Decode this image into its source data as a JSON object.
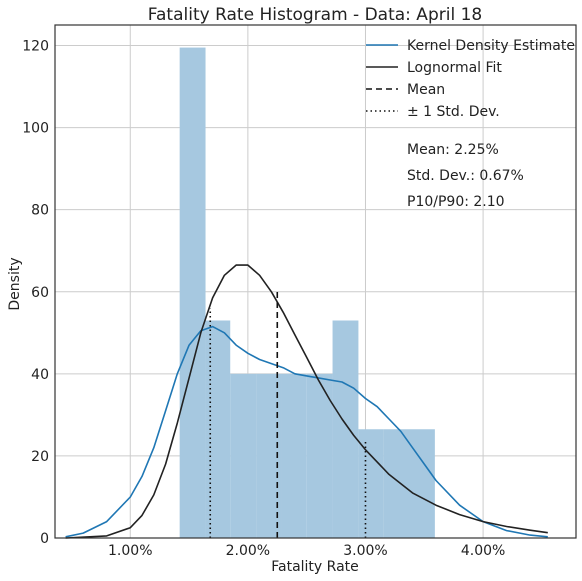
{
  "chart_data": {
    "type": "histogram",
    "title": "Fatality Rate Histogram - Data: April 18",
    "xlabel": "Fatality Rate",
    "ylabel": "Density",
    "xlim": [
      0.0036,
      0.0479
    ],
    "ylim": [
      0,
      125
    ],
    "x_ticks": [
      {
        "value": 0.01,
        "label": "1.00%"
      },
      {
        "value": 0.02,
        "label": "2.00%"
      },
      {
        "value": 0.03,
        "label": "3.00%"
      },
      {
        "value": 0.04,
        "label": "4.00%"
      }
    ],
    "y_ticks": [
      {
        "value": 0,
        "label": "0"
      },
      {
        "value": 20,
        "label": "20"
      },
      {
        "value": 40,
        "label": "40"
      },
      {
        "value": 60,
        "label": "60"
      },
      {
        "value": 80,
        "label": "80"
      },
      {
        "value": 100,
        "label": "100"
      },
      {
        "value": 120,
        "label": "120"
      }
    ],
    "grid": true,
    "legend_position": "top-right",
    "histogram": {
      "bins": [
        {
          "x0": 0.0142,
          "x1": 0.0164,
          "density": 119.5
        },
        {
          "x0": 0.0164,
          "x1": 0.0185,
          "density": 53
        },
        {
          "x0": 0.0185,
          "x1": 0.0207,
          "density": 40
        },
        {
          "x0": 0.0207,
          "x1": 0.0229,
          "density": 40
        },
        {
          "x0": 0.0229,
          "x1": 0.025,
          "density": 40
        },
        {
          "x0": 0.025,
          "x1": 0.0272,
          "density": 40
        },
        {
          "x0": 0.0272,
          "x1": 0.0294,
          "density": 53
        },
        {
          "x0": 0.0294,
          "x1": 0.0315,
          "density": 26.5
        },
        {
          "x0": 0.0315,
          "x1": 0.0337,
          "density": 26.5
        },
        {
          "x0": 0.0337,
          "x1": 0.0359,
          "density": 26.5
        }
      ],
      "color": "#a6c8e0"
    },
    "series": [
      {
        "name": "Kernel Density Estimate",
        "color": "#1f77b4",
        "style": "solid",
        "x": [
          0.0045,
          0.006,
          0.008,
          0.01,
          0.011,
          0.012,
          0.013,
          0.014,
          0.015,
          0.016,
          0.017,
          0.018,
          0.019,
          0.02,
          0.021,
          0.022,
          0.023,
          0.024,
          0.025,
          0.026,
          0.027,
          0.028,
          0.029,
          0.03,
          0.031,
          0.032,
          0.033,
          0.034,
          0.035,
          0.036,
          0.038,
          0.04,
          0.042,
          0.044,
          0.0455
        ],
        "y": [
          0.3,
          1.2,
          4,
          10,
          15,
          22,
          31,
          40,
          47,
          50.5,
          51.5,
          50,
          47,
          45,
          43.5,
          42.5,
          41.5,
          40,
          39.5,
          39,
          38.5,
          38,
          36.5,
          34,
          32,
          29,
          26,
          22,
          18,
          14,
          8,
          4,
          1.8,
          0.7,
          0.3
        ]
      },
      {
        "name": "Lognormal Fit",
        "color": "#222222",
        "style": "solid",
        "x": [
          0.0045,
          0.008,
          0.01,
          0.011,
          0.012,
          0.013,
          0.014,
          0.015,
          0.016,
          0.017,
          0.018,
          0.019,
          0.02,
          0.021,
          0.022,
          0.023,
          0.024,
          0.025,
          0.026,
          0.027,
          0.028,
          0.029,
          0.03,
          0.032,
          0.034,
          0.036,
          0.038,
          0.04,
          0.042,
          0.044,
          0.0455
        ],
        "y": [
          0,
          0.5,
          2.5,
          5.5,
          10.5,
          18,
          28,
          39,
          50,
          58.5,
          64,
          66.5,
          66.5,
          64,
          60,
          55,
          49.5,
          44,
          38.5,
          33.5,
          29,
          25,
          21.5,
          15.5,
          11,
          8,
          5.7,
          4,
          2.8,
          1.9,
          1.3
        ]
      }
    ],
    "vlines": [
      {
        "name": "Mean",
        "x": 0.0225,
        "ymax": 60,
        "style": "dashed",
        "color": "#111111"
      },
      {
        "name": "± 1 Std. Dev.",
        "x": 0.0168,
        "ymax": 56,
        "style": "dotted",
        "color": "#111111"
      },
      {
        "name": "± 1 Std. Dev.",
        "x": 0.03,
        "ymax": 24,
        "style": "dotted",
        "color": "#111111"
      }
    ],
    "legend": [
      {
        "label": "Kernel Density Estimate",
        "color": "#1f77b4",
        "style": "solid"
      },
      {
        "label": "Lognormal Fit",
        "color": "#222222",
        "style": "solid"
      },
      {
        "label": "Mean",
        "color": "#111111",
        "style": "dashed"
      },
      {
        "label": "± 1 Std. Dev.",
        "color": "#111111",
        "style": "dotted"
      }
    ],
    "annotations": [
      "Mean: 2.25%",
      "Std. Dev.: 0.67%",
      "P10/P90: 2.10"
    ]
  }
}
